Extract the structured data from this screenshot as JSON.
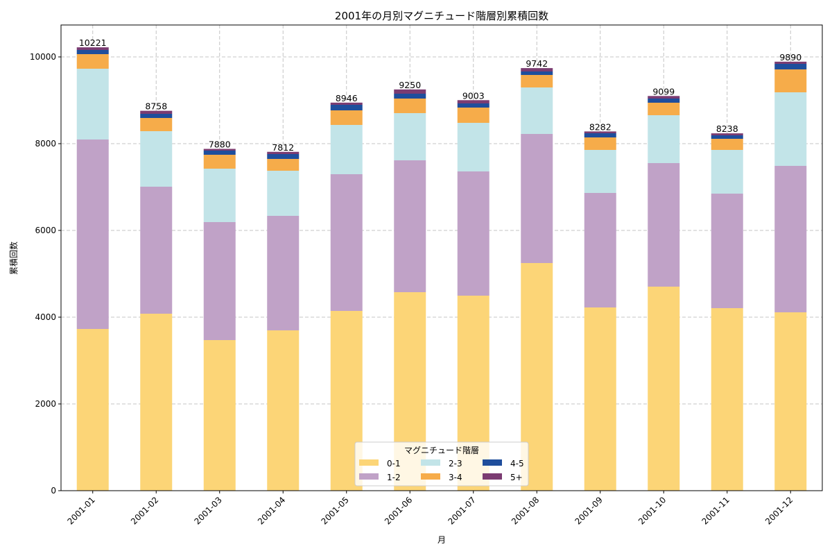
{
  "chart_data": {
    "type": "bar",
    "stacked": true,
    "title": "2001年の月別マグニチュード階層別累積回数",
    "xlabel": "月",
    "ylabel": "累積回数",
    "ylim": [
      0,
      10736
    ],
    "yticks": [
      0,
      2000,
      4000,
      6000,
      8000,
      10000
    ],
    "grid": true,
    "legend": {
      "title": "マグニチュード階層",
      "placement": "bottom-center",
      "columns": 3
    },
    "categories": [
      "2001-01",
      "2001-02",
      "2001-03",
      "2001-04",
      "2001-05",
      "2001-06",
      "2001-07",
      "2001-08",
      "2001-09",
      "2001-10",
      "2001-11",
      "2001-12"
    ],
    "series": [
      {
        "name": "0-1",
        "color": "#fcd577",
        "values": [
          3728,
          4080,
          3472,
          3696,
          4144,
          4576,
          4496,
          5248,
          4224,
          4704,
          4208,
          4112
        ]
      },
      {
        "name": "1-2",
        "color": "#c0a2c7",
        "values": [
          4368,
          2928,
          2720,
          2640,
          3152,
          3040,
          2864,
          2976,
          2640,
          2848,
          2640,
          3376
        ]
      },
      {
        "name": "2-3",
        "color": "#c2e4e8",
        "values": [
          1632,
          1280,
          1232,
          1040,
          1136,
          1088,
          1120,
          1072,
          992,
          1104,
          1008,
          1696
        ]
      },
      {
        "name": "3-4",
        "color": "#f6ac4a",
        "values": [
          336,
          304,
          320,
          272,
          336,
          336,
          352,
          288,
          288,
          288,
          256,
          528
        ]
      },
      {
        "name": "4-5",
        "color": "#1f4e9c",
        "values": [
          96,
          96,
          96,
          112,
          128,
          112,
          96,
          80,
          96,
          96,
          80,
          128
        ]
      },
      {
        "name": "5+",
        "color": "#7b3c72",
        "values": [
          61,
          70,
          40,
          52,
          50,
          98,
          75,
          78,
          42,
          59,
          46,
          50
        ]
      }
    ],
    "totals": [
      10221,
      8758,
      7880,
      7812,
      8946,
      9250,
      9003,
      9742,
      8282,
      9099,
      8238,
      9890
    ]
  }
}
